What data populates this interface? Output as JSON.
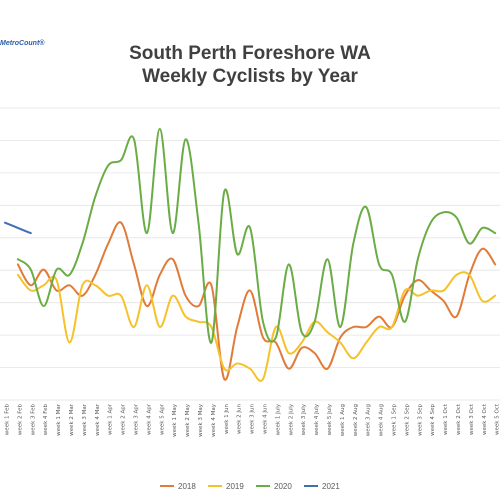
{
  "logo_text": "MetroCount®",
  "chart_data": {
    "type": "line",
    "title": [
      "South Perth Foreshore WA",
      "Weekly Cyclists by Year"
    ],
    "xlabel": "",
    "ylabel": "",
    "grid": true,
    "legend_position": "bottom",
    "categories": [
      "week 1 Feb",
      "week 2 Feb",
      "week 3 Feb",
      "week 4 Feb",
      "week 1 Mar",
      "week 2 Mar",
      "week 3 Mar",
      "week 4 Mar",
      "week 1 Apr",
      "week 2 Apr",
      "week 3 Apr",
      "week 4 Apr",
      "week 5 Apr",
      "week 1 May",
      "week 2 May",
      "week 3 May",
      "week 4 May",
      "week 1 Jun",
      "week 2 Jun",
      "week 3 Jun",
      "week 4 Jun",
      "week 1 July",
      "week 2 July",
      "week 3 July",
      "week 4 July",
      "week 5 July",
      "week 1 Aug",
      "week 2 Aug",
      "week 3 Aug",
      "week 4 Aug",
      "week 1 Sep",
      "week 2 Sep",
      "week 3 Sep",
      "week 4 Sep",
      "week 1 Oct",
      "week 2 Oct",
      "week 3 Oct",
      "week 4 Oct",
      "week 5 Oct"
    ],
    "series": [
      {
        "name": "2018",
        "color": "#e07b39",
        "values": [
          null,
          270,
          290,
          275,
          295,
          290,
          300,
          280,
          250,
          230,
          270,
          310,
          280,
          265,
          300,
          310,
          290,
          380,
          330,
          295,
          340,
          345,
          370,
          350,
          355,
          370,
          340,
          330,
          330,
          320,
          330,
          300,
          285,
          295,
          305,
          320,
          280,
          255,
          270
        ]
      },
      {
        "name": "2019",
        "color": "#f5c22c",
        "values": [
          null,
          280,
          295,
          290,
          285,
          345,
          290,
          290,
          300,
          300,
          330,
          290,
          330,
          300,
          320,
          325,
          330,
          370,
          365,
          370,
          380,
          330,
          355,
          345,
          325,
          335,
          345,
          360,
          345,
          330,
          330,
          295,
          300,
          295,
          295,
          280,
          280,
          305,
          300
        ]
      },
      {
        "name": "2020",
        "color": "#6aac46",
        "values": [
          null,
          265,
          275,
          310,
          275,
          280,
          250,
          205,
          175,
          170,
          150,
          240,
          140,
          240,
          150,
          230,
          345,
          200,
          260,
          235,
          325,
          340,
          270,
          335,
          325,
          265,
          330,
          250,
          215,
          270,
          280,
          325,
          265,
          230,
          220,
          225,
          250,
          235,
          240
        ]
      },
      {
        "name": "2021",
        "color": "#3e6fb5",
        "values": [
          230,
          235,
          240,
          null,
          null,
          null,
          null,
          null,
          null,
          null,
          null,
          null,
          null,
          null,
          null,
          null,
          null,
          null,
          null,
          null,
          null,
          null,
          null,
          null,
          null,
          null,
          null,
          null,
          null,
          null,
          null,
          null,
          null,
          null,
          null,
          null,
          null,
          null,
          null
        ]
      }
    ]
  }
}
